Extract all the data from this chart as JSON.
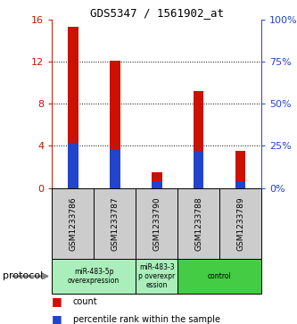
{
  "title": "GDS5347 / 1561902_at",
  "samples": [
    "GSM1233786",
    "GSM1233787",
    "GSM1233790",
    "GSM1233788",
    "GSM1233789"
  ],
  "count_values": [
    15.3,
    12.1,
    1.5,
    9.2,
    3.5
  ],
  "percentile_values": [
    27,
    23,
    4,
    22,
    4
  ],
  "ylim_left": [
    0,
    16
  ],
  "ylim_right": [
    0,
    100
  ],
  "yticks_left": [
    0,
    4,
    8,
    12,
    16
  ],
  "yticks_right": [
    0,
    25,
    50,
    75,
    100
  ],
  "ytick_labels_left": [
    "0",
    "4",
    "8",
    "12",
    "16"
  ],
  "ytick_labels_right": [
    "0%",
    "25%",
    "50%",
    "75%",
    "100%"
  ],
  "bar_color_count": "#cc1100",
  "bar_color_percentile": "#2244cc",
  "bar_width": 0.25,
  "groups": [
    {
      "label": "miR-483-5p\noverexpression",
      "start": 0,
      "end": 2,
      "color": "#aaeebb"
    },
    {
      "label": "miR-483-3\np overexpr\nession",
      "start": 2,
      "end": 3,
      "color": "#aaeebb"
    },
    {
      "label": "control",
      "start": 3,
      "end": 5,
      "color": "#44cc44"
    }
  ],
  "protocol_label": "protocol",
  "legend_count_label": "count",
  "legend_percentile_label": "percentile rank within the sample",
  "background_plot": "#ffffff",
  "background_sample_row": "#cccccc",
  "tick_color_left": "#cc1100",
  "tick_color_right": "#2244cc"
}
